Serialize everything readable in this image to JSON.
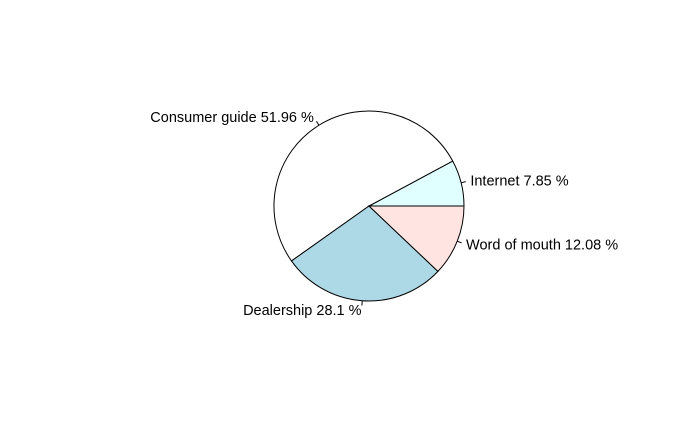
{
  "chart_data": {
    "type": "pie",
    "title": "",
    "direction": "counterclockwise",
    "start_angle_deg": 0,
    "slices": [
      {
        "label": "Internet 7.85 %",
        "category": "Internet",
        "value": 7.85,
        "color": "#e0ffff"
      },
      {
        "label": "Consumer guide 51.96 %",
        "category": "Consumer guide",
        "value": 51.96,
        "color": "#ffffff"
      },
      {
        "label": "Dealership 28.1 %",
        "category": "Dealership",
        "value": 28.1,
        "color": "#add8e6"
      },
      {
        "label": "Word of mouth 12.08 %",
        "category": "Word of mouth",
        "value": 12.08,
        "color": "#ffe4e1"
      }
    ]
  }
}
